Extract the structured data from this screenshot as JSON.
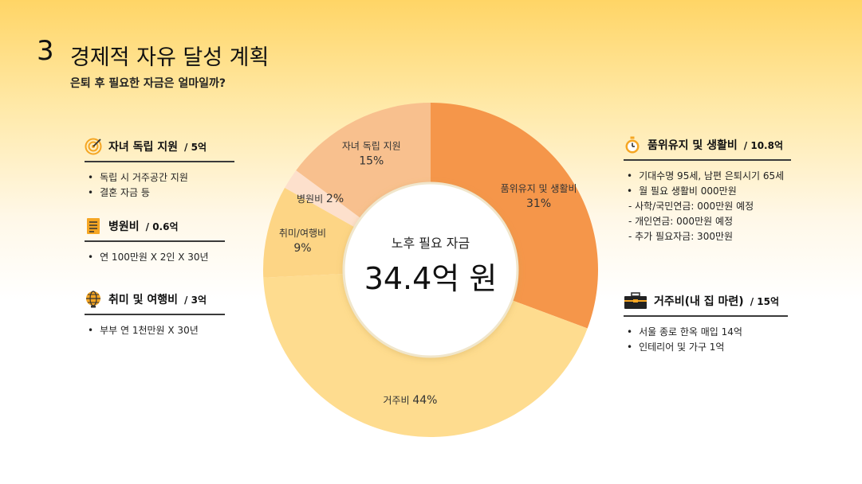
{
  "header": {
    "number": "3",
    "title": "경제적 자유 달성 계획",
    "subtitle": "은퇴 후 필요한 자금은 얼마일까?"
  },
  "left_sections": [
    {
      "icon": "target-icon",
      "name": "자녀 독립 지원",
      "amount": "/ 5억",
      "items": [
        "독립 시 거주공간 지원",
        "결혼 자금 등"
      ]
    },
    {
      "icon": "document-icon",
      "name": "병원비",
      "amount": "/ 0.6억",
      "items": [
        "연 100만원 X 2인 X 30년"
      ]
    },
    {
      "icon": "globe-icon",
      "name": "취미 및 여행비",
      "amount": "/ 3억",
      "items": [
        "부부 연 1천만원 X 30년"
      ]
    }
  ],
  "right_sections": [
    {
      "icon": "stopwatch-icon",
      "name": "품위유지 및 생활비",
      "amount": "/ 10.8억",
      "items": [
        "기대수명 95세, 남편 은퇴시기 65세",
        "월 필요 생활비 000만원"
      ],
      "sub_items": [
        "- 사학/국민연금: 000만원 예정",
        "- 개인연금: 000만원 예정",
        "- 추가 필요자금: 300만원"
      ]
    },
    {
      "icon": "briefcase-icon",
      "name": "거주비(내 집 마련)",
      "amount": "/ 15억",
      "items": [
        "서울 종로 한옥 매입 14억",
        "인테리어 및 가구 1억"
      ],
      "sub_items": []
    }
  ],
  "chart_data": {
    "type": "pie",
    "variant": "donut",
    "center_label": "노후 필요 자금",
    "center_value": "34.4억 원",
    "slices": [
      {
        "name": "품위유지 및 생활비",
        "value": 31,
        "label": "31%",
        "color": "#f5964a",
        "inline": false
      },
      {
        "name": "거주비",
        "value": 44,
        "label": "44%",
        "color": "#fedc8f",
        "inline": true
      },
      {
        "name": "취미/여행비",
        "value": 9,
        "label": "9%",
        "color": "#fdd585",
        "inline": false
      },
      {
        "name": "병원비",
        "value": 2,
        "label": "2%",
        "color": "#fde0cc",
        "inline": true
      },
      {
        "name": "자녀 독립 지원",
        "value": 15,
        "label": "15%",
        "color": "#f8c08e",
        "inline": false
      }
    ],
    "start_angle_deg": 0,
    "direction": "clockwise"
  },
  "colors": {
    "accent": "#f5964a",
    "rule": "#3a3a3a",
    "icon_gold": "#f5a623"
  }
}
